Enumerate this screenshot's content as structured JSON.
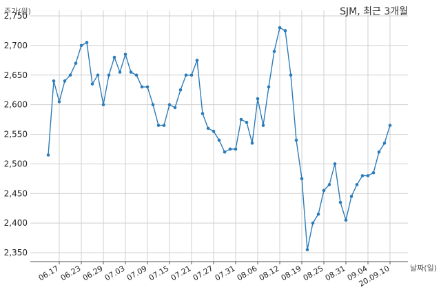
{
  "chart_data": {
    "type": "line",
    "title": "SJM, 최근 3개월",
    "ylabel": "주가(원)",
    "xlabel": "날짜(일)",
    "ylim": [
      2350,
      2750
    ],
    "yticks": [
      2350,
      2400,
      2450,
      2500,
      2550,
      2600,
      2650,
      2700,
      2750
    ],
    "ytick_labels": [
      "2,350",
      "2,400",
      "2,450",
      "2,500",
      "2,550",
      "2,600",
      "2,650",
      "2,700",
      "2,750"
    ],
    "xtick_labels": [
      "06.17",
      "06.23",
      "06.29",
      "07.03",
      "07.09",
      "07.15",
      "07.21",
      "07.27",
      "07.31",
      "08.06",
      "08.12",
      "08.19",
      "08.25",
      "08.31",
      "09.04",
      "20.09.10"
    ],
    "xtick_indices": [
      2,
      6,
      10,
      14,
      18,
      22,
      26,
      30,
      34,
      38,
      42,
      46,
      50,
      54,
      58,
      62
    ],
    "grid": true,
    "color": "#2b7bb9",
    "series": [
      {
        "values": [
          2515,
          2640,
          2605,
          2640,
          2650,
          2670,
          2700,
          2705,
          2635,
          2650,
          2600,
          2650,
          2680,
          2655,
          2685,
          2655,
          2650,
          2630,
          2630,
          2600,
          2565,
          2565,
          2600,
          2595,
          2625,
          2650,
          2650,
          2675,
          2585,
          2560,
          2555,
          2540,
          2520,
          2525,
          2525,
          2575,
          2570,
          2535,
          2610,
          2565,
          2630,
          2690,
          2730,
          2725,
          2650,
          2540,
          2475,
          2355,
          2400,
          2415,
          2455,
          2465,
          2500,
          2435,
          2405,
          2445,
          2465,
          2480,
          2480,
          2485,
          2520,
          2535,
          2565
        ]
      }
    ]
  }
}
